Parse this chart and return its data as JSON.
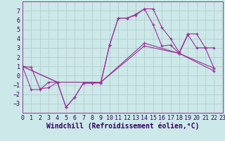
{
  "background_color": "#cce8e8",
  "grid_color": "#b0c8c8",
  "line_color": "#993399",
  "marker_color": "#993399",
  "xlabel": "Windchill (Refroidissement éolien,°C)",
  "xlim": [
    0,
    23
  ],
  "ylim": [
    -4,
    8
  ],
  "yticks": [
    -3,
    -2,
    -1,
    0,
    1,
    2,
    3,
    4,
    5,
    6,
    7
  ],
  "xticks": [
    0,
    1,
    2,
    3,
    4,
    5,
    6,
    7,
    8,
    9,
    10,
    11,
    12,
    13,
    14,
    15,
    16,
    17,
    18,
    19,
    20,
    21,
    22,
    23
  ],
  "xticklabels": [
    "0",
    "1",
    "2",
    "3",
    "4",
    "5",
    "6",
    "7",
    "8",
    "9",
    "10",
    "11",
    "12",
    "13",
    "14",
    "15",
    "16",
    "17",
    "18",
    "19",
    "20",
    "21",
    "22",
    "23"
  ],
  "series": [
    {
      "x": [
        0,
        1,
        2,
        3,
        4,
        5,
        6,
        7,
        8,
        9,
        10,
        11,
        12,
        13,
        14,
        15,
        16,
        17,
        18,
        19,
        20,
        21,
        22
      ],
      "y": [
        1,
        0.9,
        -1.4,
        -1.3,
        -0.7,
        -3.4,
        -2.3,
        -0.8,
        -0.8,
        -0.7,
        3.3,
        6.2,
        6.2,
        6.6,
        7.2,
        7.2,
        5.2,
        4.0,
        2.5,
        4.5,
        4.5,
        3.0,
        3.0
      ]
    },
    {
      "x": [
        0,
        1,
        2,
        3,
        4,
        5,
        6,
        7,
        8,
        9,
        10,
        11,
        12,
        13,
        14,
        15,
        16,
        17,
        18,
        19,
        20,
        21,
        22
      ],
      "y": [
        1,
        -1.5,
        -1.5,
        -0.7,
        -0.7,
        -3.4,
        -2.3,
        -0.8,
        -0.8,
        -0.8,
        3.3,
        6.2,
        6.2,
        6.5,
        7.2,
        5.5,
        3.2,
        3.3,
        2.4,
        4.4,
        3.0,
        3.0,
        0.8
      ]
    },
    {
      "x": [
        0,
        4,
        9,
        14,
        18,
        22
      ],
      "y": [
        1,
        -0.7,
        -0.7,
        3.5,
        2.4,
        0.8
      ]
    },
    {
      "x": [
        0,
        4,
        9,
        14,
        18,
        22
      ],
      "y": [
        1,
        -0.7,
        -0.7,
        3.2,
        2.4,
        0.5
      ]
    }
  ],
  "xlabel_fontsize": 7,
  "tick_fontsize": 6,
  "font_family": "monospace"
}
